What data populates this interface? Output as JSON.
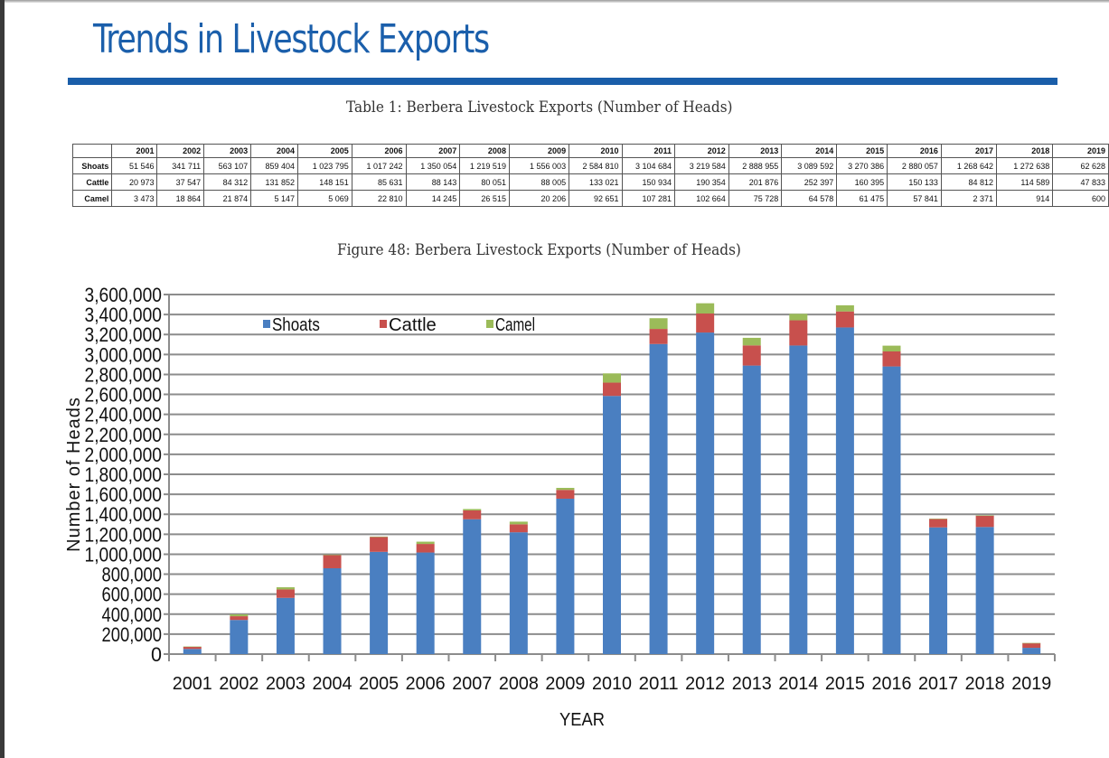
{
  "page": {
    "title": "Trends in Livestock Exports",
    "table_caption": "Table 1: Berbera Livestock Exports (Number of Heads)",
    "figure_caption": "Figure 48: Berbera Livestock Exports (Number of Heads)"
  },
  "table": {
    "years": [
      "2001",
      "2002",
      "2003",
      "2004",
      "2005",
      "2006",
      "2007",
      "2008",
      "2009",
      "2010",
      "2011",
      "2012",
      "2013",
      "2014",
      "2015",
      "2016",
      "2017",
      "2018",
      "2019"
    ],
    "rows": [
      {
        "label": "Shoats",
        "values": [
          "51 546",
          "341 711",
          "563 107",
          "859 404",
          "1 023 795",
          "1 017 242",
          "1 350 054",
          "1 219 519",
          "1 556 003",
          "2 584 810",
          "3 104 684",
          "3 219 584",
          "2 888 955",
          "3 089 592",
          "3 270 386",
          "2 880 057",
          "1 268 642",
          "1 272 638",
          "62 628"
        ]
      },
      {
        "label": "Cattle",
        "values": [
          "20 973",
          "37 547",
          "84 312",
          "131 852",
          "148 151",
          "85 631",
          "88 143",
          "80 051",
          "88 005",
          "133 021",
          "150 934",
          "190 354",
          "201 876",
          "252 397",
          "160 395",
          "150 133",
          "84 812",
          "114 589",
          "47 833"
        ]
      },
      {
        "label": "Camel",
        "values": [
          "3 473",
          "18 864",
          "21 874",
          "5 147",
          "5 069",
          "22 810",
          "14 245",
          "26 515",
          "20 206",
          "92 651",
          "107 281",
          "102 664",
          "75 728",
          "64 578",
          "61 475",
          "57 841",
          "2 371",
          "914",
          "600"
        ]
      }
    ]
  },
  "chart_data": {
    "type": "bar",
    "stacked": true,
    "title": "Figure 48: Berbera Livestock Exports (Number of Heads)",
    "xlabel": "YEAR",
    "ylabel": "Number of Heads",
    "ylim": [
      0,
      3600000
    ],
    "ytick_step": 200000,
    "yticks": [
      "0",
      "200,000",
      "400,000",
      "600,000",
      "800,000",
      "1,000,000",
      "1,200,000",
      "1,400,000",
      "1,600,000",
      "1,800,000",
      "2,000,000",
      "2,200,000",
      "2,400,000",
      "2,600,000",
      "2,800,000",
      "3,000,000",
      "3,200,000",
      "3,400,000",
      "3,600,000"
    ],
    "grid": true,
    "legend_position": "top-left",
    "categories": [
      "2001",
      "2002",
      "2003",
      "2004",
      "2005",
      "2006",
      "2007",
      "2008",
      "2009",
      "2010",
      "2011",
      "2012",
      "2013",
      "2014",
      "2015",
      "2016",
      "2017",
      "2018",
      "2019"
    ],
    "series": [
      {
        "name": "Shoats",
        "color": "#4a7fc1",
        "values": [
          51546,
          341711,
          563107,
          859404,
          1023795,
          1017242,
          1350054,
          1219519,
          1556003,
          2584810,
          3104684,
          3219584,
          2888955,
          3089592,
          3270386,
          2880057,
          1268642,
          1272638,
          62628
        ]
      },
      {
        "name": "Cattle",
        "color": "#c8504d",
        "values": [
          20973,
          37547,
          84312,
          131852,
          148151,
          85631,
          88143,
          80051,
          88005,
          133021,
          150934,
          190354,
          201876,
          252397,
          160395,
          150133,
          84812,
          114589,
          47833
        ]
      },
      {
        "name": "Camel",
        "color": "#9bbb59",
        "values": [
          3473,
          18864,
          21874,
          5147,
          5069,
          22810,
          14245,
          26515,
          20206,
          92651,
          107281,
          102664,
          75728,
          64578,
          61475,
          57841,
          2371,
          914,
          600
        ]
      }
    ]
  }
}
